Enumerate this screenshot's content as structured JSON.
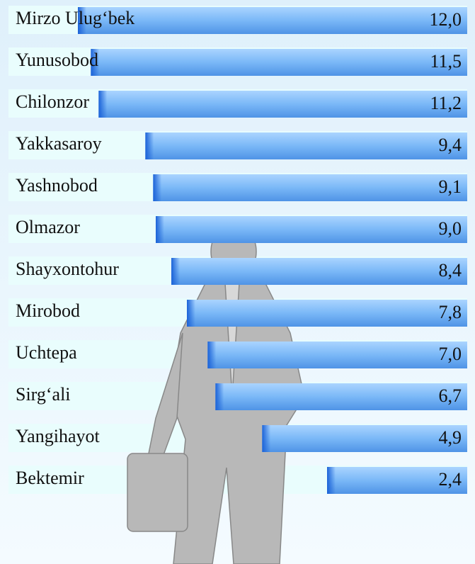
{
  "chart_data": {
    "type": "bar",
    "orientation": "horizontal",
    "categories": [
      "Mirzo Ulug‘bek",
      "Yunusobod",
      "Chilonzor",
      "Yakkasaroy",
      "Yashnobod",
      "Olmazor",
      "Shayxontohur",
      "Mirobod",
      "Uchtepa",
      "Sirg‘ali",
      "Yangihayot",
      "Bektemir"
    ],
    "values": [
      12.0,
      11.5,
      11.2,
      9.4,
      9.1,
      9.0,
      8.4,
      7.8,
      7.0,
      6.7,
      4.9,
      2.4
    ],
    "value_labels": [
      "12,0",
      "11,5",
      "11,2",
      "9,4",
      "9,1",
      "9,0",
      "8,4",
      "7,8",
      "7,0",
      "6,7",
      "4,9",
      "2,4"
    ],
    "color": "#6fb0f5"
  }
}
